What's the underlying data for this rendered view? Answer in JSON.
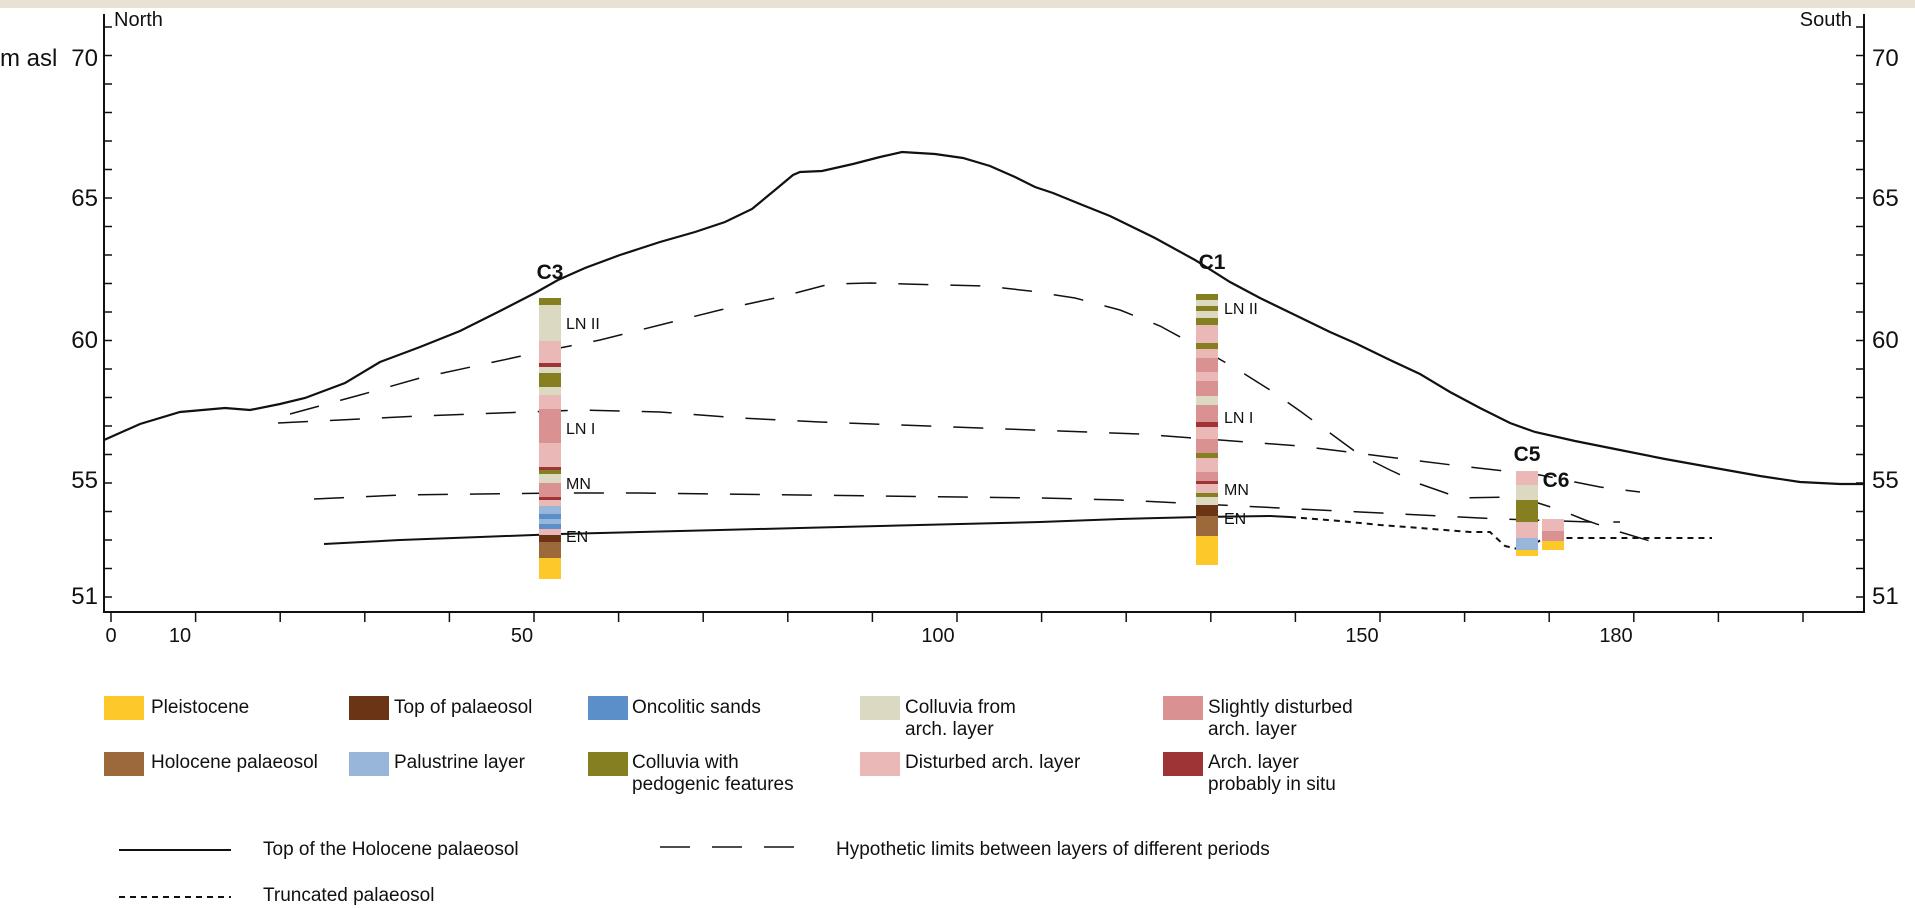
{
  "figure": {
    "y_axis_unit": "m asl",
    "dir_left": "North",
    "dir_right": "South",
    "y_ticks": [
      "70",
      "65",
      "60",
      "55",
      "51"
    ],
    "x_ticks": [
      "0",
      "10",
      "50",
      "100",
      "150",
      "180"
    ]
  },
  "cores": [
    {
      "id": "c3",
      "label": "C3"
    },
    {
      "id": "c1",
      "label": "C1"
    },
    {
      "id": "c5",
      "label": "C5"
    },
    {
      "id": "c6",
      "label": "C6"
    }
  ],
  "period_labels": {
    "c3_ln2": "LN II",
    "c3_ln1": "LN I",
    "c3_mn": "MN",
    "c3_en": "EN",
    "c1_ln2": "LN II",
    "c1_ln1": "LN I",
    "c1_mn": "MN",
    "c1_en": "EN"
  },
  "colors": {
    "pleistocene": "#fdc92a",
    "holocene_palaeosol": "#9c6a3a",
    "top_palaeosol": "#6b3515",
    "palustrine": "#98b6da",
    "oncolitic": "#5a8fca",
    "colluvia_pedogenic": "#857f22",
    "colluvia_arch": "#dcd9c2",
    "disturbed": "#ebb8b8",
    "slightly_disturbed": "#d99191",
    "in_situ": "#9e3436"
  },
  "legend": {
    "items": [
      {
        "key": "pleistocene",
        "label": "Pleistocene"
      },
      {
        "key": "top_palaeosol",
        "label": "Top of palaeosol"
      },
      {
        "key": "oncolitic",
        "label": "Oncolitic sands"
      },
      {
        "key": "colluvia_arch",
        "label": "Colluvia from\narch. layer"
      },
      {
        "key": "slightly_disturbed",
        "label": "Slightly disturbed\narch. layer"
      },
      {
        "key": "holocene_palaeosol",
        "label": "Holocene palaeosol"
      },
      {
        "key": "palustrine",
        "label": "Palustrine layer"
      },
      {
        "key": "colluvia_pedogenic",
        "label": "Colluvia with\npedogenic features"
      },
      {
        "key": "disturbed",
        "label": "Disturbed arch. layer"
      },
      {
        "key": "in_situ",
        "label": "Arch. layer\nprobably in situ"
      }
    ],
    "lines": {
      "solid": "Top of the Holocene palaeosol",
      "dashed": "Hypothetic limits between layers of different periods",
      "dotted": "Truncated palaeosol"
    }
  }
}
